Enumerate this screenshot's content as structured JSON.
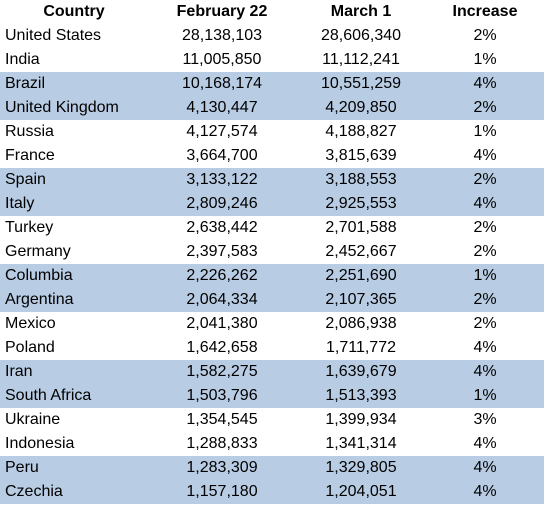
{
  "table": {
    "headers": [
      "Country",
      "February 22",
      "March 1",
      "Increase"
    ],
    "band_color": "#b8cce4",
    "rows": [
      {
        "country": "United States",
        "feb22": "28,138,103",
        "mar1": "28,606,340",
        "increase": "2%",
        "banded": false
      },
      {
        "country": "India",
        "feb22": "11,005,850",
        "mar1": "11,112,241",
        "increase": "1%",
        "banded": false
      },
      {
        "country": "Brazil",
        "feb22": "10,168,174",
        "mar1": "10,551,259",
        "increase": "4%",
        "banded": true
      },
      {
        "country": "United Kingdom",
        "feb22": "4,130,447",
        "mar1": "4,209,850",
        "increase": "2%",
        "banded": true
      },
      {
        "country": "Russia",
        "feb22": "4,127,574",
        "mar1": "4,188,827",
        "increase": "1%",
        "banded": false
      },
      {
        "country": "France",
        "feb22": "3,664,700",
        "mar1": "3,815,639",
        "increase": "4%",
        "banded": false
      },
      {
        "country": "Spain",
        "feb22": "3,133,122",
        "mar1": "3,188,553",
        "increase": "2%",
        "banded": true
      },
      {
        "country": "Italy",
        "feb22": "2,809,246",
        "mar1": "2,925,553",
        "increase": "4%",
        "banded": true
      },
      {
        "country": "Turkey",
        "feb22": "2,638,442",
        "mar1": "2,701,588",
        "increase": "2%",
        "banded": false
      },
      {
        "country": "Germany",
        "feb22": "2,397,583",
        "mar1": "2,452,667",
        "increase": "2%",
        "banded": false
      },
      {
        "country": "Columbia",
        "feb22": "2,226,262",
        "mar1": "2,251,690",
        "increase": "1%",
        "banded": true
      },
      {
        "country": "Argentina",
        "feb22": "2,064,334",
        "mar1": "2,107,365",
        "increase": "2%",
        "banded": true
      },
      {
        "country": "Mexico",
        "feb22": "2,041,380",
        "mar1": "2,086,938",
        "increase": "2%",
        "banded": false
      },
      {
        "country": "Poland",
        "feb22": "1,642,658",
        "mar1": "1,711,772",
        "increase": "4%",
        "banded": false
      },
      {
        "country": "Iran",
        "feb22": "1,582,275",
        "mar1": "1,639,679",
        "increase": "4%",
        "banded": true
      },
      {
        "country": "South Africa",
        "feb22": "1,503,796",
        "mar1": "1,513,393",
        "increase": "1%",
        "banded": true
      },
      {
        "country": "Ukraine",
        "feb22": "1,354,545",
        "mar1": "1,399,934",
        "increase": "3%",
        "banded": false
      },
      {
        "country": "Indonesia",
        "feb22": "1,288,833",
        "mar1": "1,341,314",
        "increase": "4%",
        "banded": false
      },
      {
        "country": "Peru",
        "feb22": "1,283,309",
        "mar1": "1,329,805",
        "increase": "4%",
        "banded": true
      },
      {
        "country": "Czechia",
        "feb22": "1,157,180",
        "mar1": "1,204,051",
        "increase": "4%",
        "banded": true
      }
    ]
  },
  "chart_data": {
    "type": "table",
    "columns": [
      "Country",
      "February 22",
      "March 1",
      "Increase"
    ],
    "rows": [
      [
        "United States",
        28138103,
        28606340,
        "2%"
      ],
      [
        "India",
        11005850,
        11112241,
        "1%"
      ],
      [
        "Brazil",
        10168174,
        10551259,
        "4%"
      ],
      [
        "United Kingdom",
        4130447,
        4209850,
        "2%"
      ],
      [
        "Russia",
        4127574,
        4188827,
        "1%"
      ],
      [
        "France",
        3664700,
        3815639,
        "4%"
      ],
      [
        "Spain",
        3133122,
        3188553,
        "2%"
      ],
      [
        "Italy",
        2809246,
        2925553,
        "4%"
      ],
      [
        "Turkey",
        2638442,
        2701588,
        "2%"
      ],
      [
        "Germany",
        2397583,
        2452667,
        "2%"
      ],
      [
        "Columbia",
        2226262,
        2251690,
        "1%"
      ],
      [
        "Argentina",
        2064334,
        2107365,
        "2%"
      ],
      [
        "Mexico",
        2041380,
        2086938,
        "2%"
      ],
      [
        "Poland",
        1642658,
        1711772,
        "4%"
      ],
      [
        "Iran",
        1582275,
        1639679,
        "4%"
      ],
      [
        "South Africa",
        1503796,
        1513393,
        "1%"
      ],
      [
        "Ukraine",
        1354545,
        1399934,
        "3%"
      ],
      [
        "Indonesia",
        1288833,
        1341314,
        "4%"
      ],
      [
        "Peru",
        1283309,
        1329805,
        "4%"
      ],
      [
        "Czechia",
        1157180,
        1204051,
        "4%"
      ]
    ]
  }
}
